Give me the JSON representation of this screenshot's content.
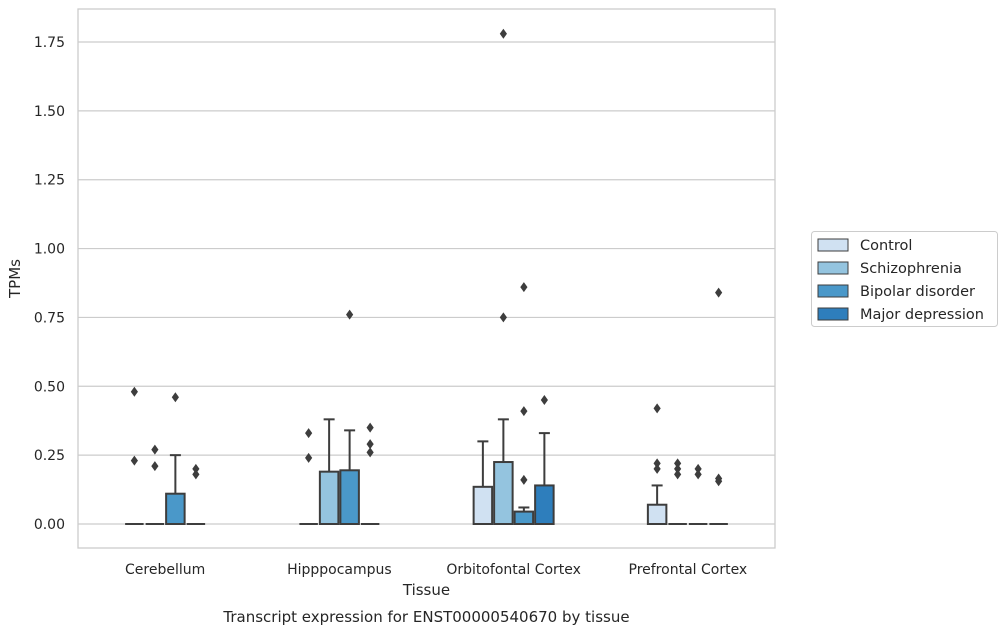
{
  "chart_data": {
    "type": "box",
    "title": "Transcript expression for ENST00000540670 by tissue",
    "xlabel": "Tissue",
    "ylabel": "TPMs",
    "ylim": [
      -0.09,
      1.87
    ],
    "yticks": [
      0.0,
      0.25,
      0.5,
      0.75,
      1.0,
      1.25,
      1.5,
      1.75
    ],
    "ytick_labels": [
      "0.00",
      "0.25",
      "0.50",
      "0.75",
      "1.00",
      "1.25",
      "1.50",
      "1.75"
    ],
    "grid": "horizontal",
    "legend_position": "right",
    "categories": [
      "Cerebellum",
      "Hipppocampus",
      "Orbitofontal Cortex",
      "Prefrontal Cortex"
    ],
    "series": [
      {
        "name": "Control",
        "color": "#d0e1f2",
        "boxes": [
          {
            "q1": 0,
            "median": 0,
            "q3": 0,
            "whislo": 0,
            "whishi": 0,
            "fliers": [
              0.48,
              0.23
            ]
          },
          {
            "q1": 0,
            "median": 0,
            "q3": 0,
            "whislo": 0,
            "whishi": 0,
            "fliers": [
              0.33,
              0.24
            ]
          },
          {
            "q1": 0,
            "median": 0,
            "q3": 0.135,
            "whislo": 0,
            "whishi": 0.3,
            "fliers": []
          },
          {
            "q1": 0,
            "median": 0,
            "q3": 0.07,
            "whislo": 0,
            "whishi": 0.14,
            "fliers": [
              0.42,
              0.22,
              0.2
            ]
          }
        ]
      },
      {
        "name": "Schizophrenia",
        "color": "#94c4df",
        "boxes": [
          {
            "q1": 0,
            "median": 0,
            "q3": 0,
            "whislo": 0,
            "whishi": 0,
            "fliers": [
              0.27,
              0.21
            ]
          },
          {
            "q1": 0,
            "median": 0,
            "q3": 0.19,
            "whislo": 0,
            "whishi": 0.38,
            "fliers": []
          },
          {
            "q1": 0,
            "median": 0,
            "q3": 0.225,
            "whislo": 0,
            "whishi": 0.38,
            "fliers": [
              1.78,
              0.75
            ]
          },
          {
            "q1": 0,
            "median": 0,
            "q3": 0,
            "whislo": 0,
            "whishi": 0,
            "fliers": [
              0.22,
              0.2,
              0.18
            ]
          }
        ]
      },
      {
        "name": "Bipolar disorder",
        "color": "#4a98c9",
        "boxes": [
          {
            "q1": 0,
            "median": 0,
            "q3": 0.11,
            "whislo": 0,
            "whishi": 0.25,
            "fliers": [
              0.46
            ]
          },
          {
            "q1": 0,
            "median": 0,
            "q3": 0.195,
            "whislo": 0,
            "whishi": 0.34,
            "fliers": [
              0.76
            ]
          },
          {
            "q1": 0,
            "median": 0,
            "q3": 0.045,
            "whislo": 0,
            "whishi": 0.06,
            "fliers": [
              0.86,
              0.41,
              0.16
            ]
          },
          {
            "q1": 0,
            "median": 0,
            "q3": 0,
            "whislo": 0,
            "whishi": 0,
            "fliers": [
              0.2,
              0.18
            ]
          }
        ]
      },
      {
        "name": "Major depression",
        "color": "#2e7ebc",
        "boxes": [
          {
            "q1": 0,
            "median": 0,
            "q3": 0,
            "whislo": 0,
            "whishi": 0,
            "fliers": [
              0.2,
              0.18
            ]
          },
          {
            "q1": 0,
            "median": 0,
            "q3": 0,
            "whislo": 0,
            "whishi": 0,
            "fliers": [
              0.35,
              0.29,
              0.26
            ]
          },
          {
            "q1": 0,
            "median": 0,
            "q3": 0.14,
            "whislo": 0,
            "whishi": 0.33,
            "fliers": [
              0.45
            ]
          },
          {
            "q1": 0,
            "median": 0,
            "q3": 0,
            "whislo": 0,
            "whishi": 0,
            "fliers": [
              0.84,
              0.165,
              0.155
            ]
          }
        ]
      }
    ]
  }
}
